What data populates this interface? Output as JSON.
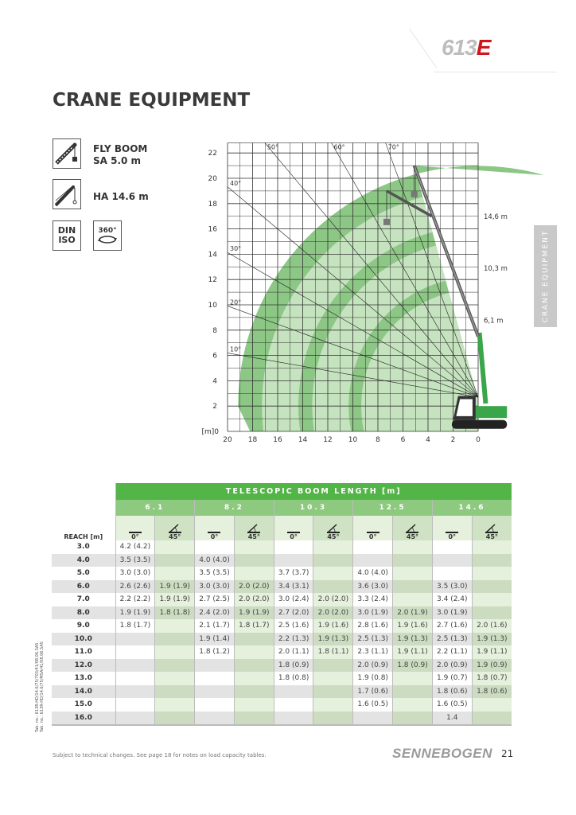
{
  "header": {
    "model_logo_main": "613",
    "model_logo_suffix": "E",
    "title": "CRANE EQUIPMENT"
  },
  "side_tab": "CRANE EQUIPMENT",
  "equipment": [
    {
      "icon": "fly-boom-icon",
      "line1": "FLY BOOM",
      "line2": "SA 5.0 m"
    },
    {
      "icon": "hook-boom-icon",
      "line1": "HA 14.6 m"
    }
  ],
  "badges": {
    "din_iso": [
      "DIN",
      "ISO"
    ],
    "rotation": "360°"
  },
  "diagram": {
    "x_ticks": [
      "20",
      "18",
      "16",
      "14",
      "12",
      "10",
      "8",
      "6",
      "4",
      "2",
      "0"
    ],
    "y_ticks": [
      "22",
      "20",
      "18",
      "16",
      "14",
      "12",
      "10",
      "8",
      "6",
      "4",
      "2"
    ],
    "origin_label": "[m]0",
    "angle_labels": [
      "10°",
      "20°",
      "30°",
      "40°",
      "50°",
      "60°",
      "70°"
    ],
    "boom_labels": [
      "14,6 m",
      "10,3 m",
      "6,1 m"
    ],
    "colors": {
      "envelope_dark": "#8cc785",
      "envelope_light": "#c5e3be",
      "boom_green": "#3aa64a"
    }
  },
  "table": {
    "title": "TELESCOPIC BOOM LENGTH [m]",
    "reach_header": "REACH [m]",
    "boom_lengths": [
      "6.1",
      "8.2",
      "10.3",
      "12.5",
      "14.6"
    ],
    "angles": [
      "0°",
      "45°"
    ],
    "rows": [
      {
        "reach": "3.0",
        "v": [
          "4.2 (4.2)",
          "",
          "",
          "",
          "",
          "",
          "",
          "",
          "",
          ""
        ]
      },
      {
        "reach": "4.0",
        "v": [
          "3.5 (3.5)",
          "",
          "4.0 (4.0)",
          "",
          "",
          "",
          "",
          "",
          "",
          ""
        ]
      },
      {
        "reach": "5.0",
        "v": [
          "3.0 (3.0)",
          "",
          "3.5 (3.5)",
          "",
          "3.7 (3.7)",
          "",
          "4.0 (4.0)",
          "",
          "",
          ""
        ]
      },
      {
        "reach": "6.0",
        "v": [
          "2.6 (2.6)",
          "1.9 (1.9)",
          "3.0 (3.0)",
          "2.0 (2.0)",
          "3.4 (3.1)",
          "",
          "3.6 (3.0)",
          "",
          "3.5 (3.0)",
          ""
        ]
      },
      {
        "reach": "7.0",
        "v": [
          "2.2 (2.2)",
          "1.9 (1.9)",
          "2.7 (2.5)",
          "2.0 (2.0)",
          "3.0 (2.4)",
          "2.0 (2.0)",
          "3.3 (2.4)",
          "",
          "3.4 (2.4)",
          ""
        ]
      },
      {
        "reach": "8.0",
        "v": [
          "1.9 (1.9)",
          "1.8 (1.8)",
          "2.4 (2.0)",
          "1.9 (1.9)",
          "2.7 (2.0)",
          "2.0 (2.0)",
          "3.0 (1.9)",
          "2.0 (1.9)",
          "3.0 (1.9)",
          ""
        ]
      },
      {
        "reach": "9.0",
        "v": [
          "1.8 (1.7)",
          "",
          "2.1 (1.7)",
          "1.8 (1.7)",
          "2.5 (1.6)",
          "1.9 (1.6)",
          "2.8 (1.6)",
          "1.9 (1.6)",
          "2.7 (1.6)",
          "2.0 (1.6)"
        ]
      },
      {
        "reach": "10.0",
        "v": [
          "",
          "",
          "1.9 (1.4)",
          "",
          "2.2 (1.3)",
          "1.9 (1.3)",
          "2.5 (1.3)",
          "1.9 (1.3)",
          "2.5 (1.3)",
          "1.9 (1.3)"
        ]
      },
      {
        "reach": "11.0",
        "v": [
          "",
          "",
          "1.8 (1.2)",
          "",
          "2.0 (1.1)",
          "1.8 (1.1)",
          "2.3 (1.1)",
          "1.9 (1.1)",
          "2.2 (1.1)",
          "1.9 (1.1)"
        ]
      },
      {
        "reach": "12.0",
        "v": [
          "",
          "",
          "",
          "",
          "1.8 (0.9)",
          "",
          "2.0 (0.9)",
          "1.8 (0.9)",
          "2.0 (0.9)",
          "1.9 (0.9)"
        ]
      },
      {
        "reach": "13.0",
        "v": [
          "",
          "",
          "",
          "",
          "1.8 (0.8)",
          "",
          "1.9 (0.8)",
          "",
          "1.9 (0.7)",
          "1.8 (0.7)"
        ]
      },
      {
        "reach": "14.0",
        "v": [
          "",
          "",
          "",
          "",
          "",
          "",
          "1.7 (0.6)",
          "",
          "1.8 (0.6)",
          "1.8 (0.6)"
        ]
      },
      {
        "reach": "15.0",
        "v": [
          "",
          "",
          "",
          "",
          "",
          "",
          "1.6 (0.5)",
          "",
          "1.6 (0.5)",
          ""
        ]
      },
      {
        "reach": "16.0",
        "v": [
          "",
          "",
          "",
          "",
          "",
          "",
          "",
          "",
          "1.4",
          ""
        ]
      }
    ]
  },
  "table_numbers": [
    "Tab. no.: 613R-HD/14.6/75/703/41/08.06.SA5",
    "Tab. no.: 613R-HD/14.6/75/MSA/41/08.06.SA5"
  ],
  "footer": {
    "note": "Subject to technical changes. See page 18 for notes on load capacity tables.",
    "brand": "SENNEBOGEN",
    "page": "21"
  }
}
